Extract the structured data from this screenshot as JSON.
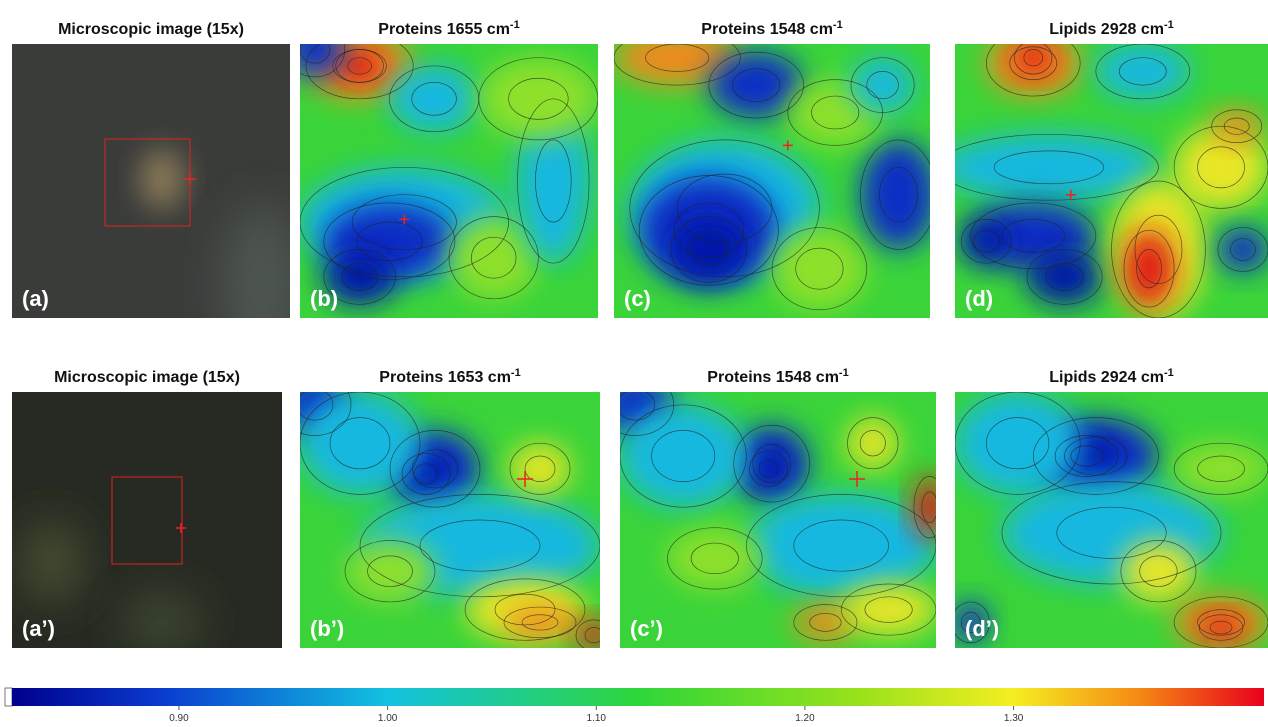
{
  "panels": [
    {
      "title": "Microscopic image (15x)",
      "label": "(a)"
    },
    {
      "title": "Proteins 1655 cm",
      "superscript": "-1",
      "label": "(b)"
    },
    {
      "title": "Proteins 1548 cm",
      "superscript": "-1",
      "label": "(c)"
    },
    {
      "title": "Lipids 2928 cm",
      "superscript": "-1",
      "label": "(d)"
    },
    {
      "title": "Microscopic image (15x)",
      "label": "(a’)"
    },
    {
      "title": "Proteins 1653 cm",
      "superscript": "-1",
      "label": "(b’)"
    },
    {
      "title": "Proteins 1548 cm",
      "superscript": "-1",
      "label": "(c’)"
    },
    {
      "title": "Lipids 2924 cm",
      "superscript": "-1",
      "label": "(d’)"
    }
  ],
  "colorbar": {
    "lim": [
      0.82,
      1.42
    ],
    "ticks": [
      {
        "value": 0.9,
        "label": "0.90"
      },
      {
        "value": 1,
        "label": "1.00"
      },
      {
        "value": 1.1,
        "label": "1.10"
      },
      {
        "value": 1.2,
        "label": "1.20"
      },
      {
        "value": 1.3,
        "label": "1.30"
      }
    ]
  }
}
